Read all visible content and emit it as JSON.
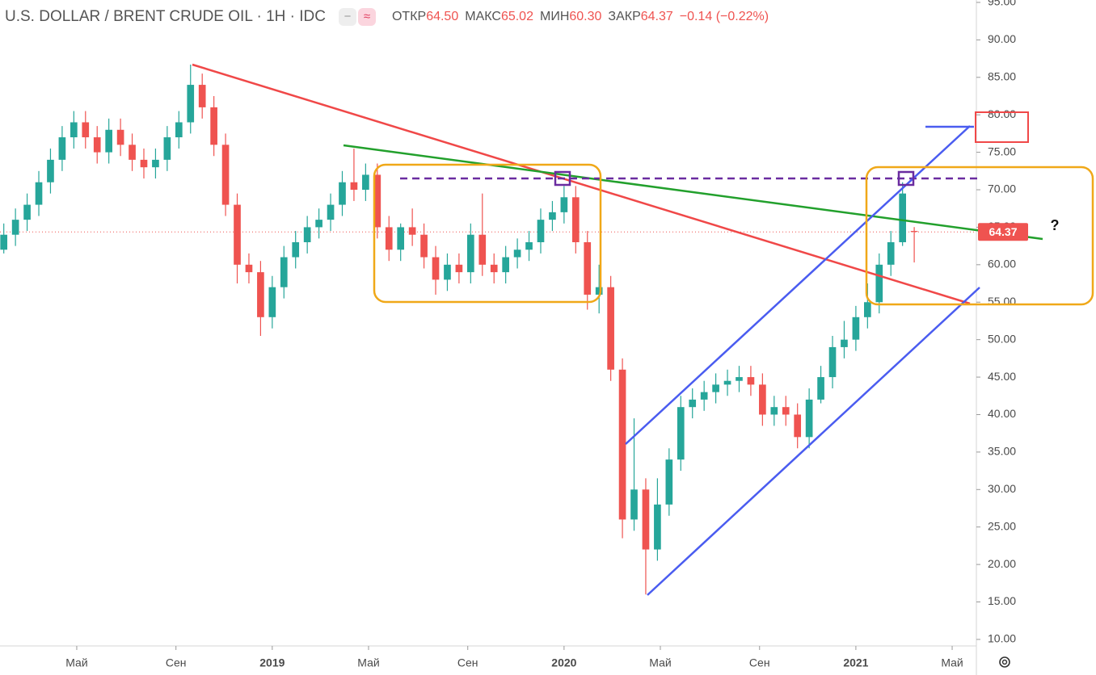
{
  "chart_data": {
    "type": "candlestick",
    "title": "U.S. DOLLAR / BRENT CRUDE OIL · 1H · IDC",
    "ohlc_legend": {
      "open_label": "ОТКР",
      "open": "64.50",
      "high_label": "МАКС",
      "high": "65.02",
      "low_label": "МИН",
      "low": "60.30",
      "close_label": "ЗАКР",
      "close": "64.37",
      "change": "−0.14 (−0.22%)"
    },
    "x": [
      2018.08,
      2018.12,
      2018.16,
      2018.2,
      2018.24,
      2018.28,
      2018.32,
      2018.36,
      2018.4,
      2018.44,
      2018.48,
      2018.52,
      2018.56,
      2018.6,
      2018.64,
      2018.68,
      2018.72,
      2018.76,
      2018.8,
      2018.84,
      2018.88,
      2018.92,
      2018.96,
      2019.0,
      2019.04,
      2019.08,
      2019.12,
      2019.16,
      2019.2,
      2019.24,
      2019.28,
      2019.32,
      2019.36,
      2019.4,
      2019.44,
      2019.48,
      2019.52,
      2019.56,
      2019.6,
      2019.64,
      2019.68,
      2019.72,
      2019.76,
      2019.8,
      2019.84,
      2019.88,
      2019.92,
      2019.96,
      2020.0,
      2020.04,
      2020.08,
      2020.12,
      2020.16,
      2020.2,
      2020.24,
      2020.28,
      2020.32,
      2020.36,
      2020.4,
      2020.44,
      2020.48,
      2020.52,
      2020.56,
      2020.6,
      2020.64,
      2020.68,
      2020.72,
      2020.76,
      2020.8,
      2020.84,
      2020.88,
      2020.92,
      2020.96,
      2021.0,
      2021.04,
      2021.08,
      2021.12,
      2021.16,
      2021.2
    ],
    "open": [
      62,
      64,
      66,
      68,
      71,
      74,
      77,
      79,
      77,
      75,
      78,
      76,
      74,
      73,
      74,
      77,
      79,
      84,
      81,
      76,
      68,
      60,
      59,
      53,
      57,
      61,
      63,
      65,
      66,
      68,
      71,
      70,
      72,
      65,
      62,
      65,
      64,
      61,
      58,
      60,
      59,
      64,
      60,
      59,
      61,
      62,
      63,
      66,
      67,
      69,
      63,
      56,
      57,
      46,
      26,
      30,
      22,
      28,
      34,
      41,
      42,
      43,
      44,
      44.5,
      45,
      44,
      40,
      41,
      40,
      37,
      42,
      45,
      49,
      50,
      53,
      55,
      60,
      63,
      64.5
    ],
    "high": [
      65.5,
      67.5,
      69.5,
      72.5,
      75.5,
      78.5,
      80.5,
      80.5,
      78.5,
      79.5,
      79.5,
      77.5,
      75.5,
      75.5,
      78.5,
      80.5,
      86.7,
      85.5,
      82.5,
      77.5,
      69.5,
      61.5,
      60.5,
      58.5,
      62.5,
      64.5,
      66.5,
      67.5,
      69.5,
      72.5,
      75.5,
      73.5,
      73.5,
      66.5,
      65.5,
      67.5,
      65.5,
      62.5,
      61.5,
      61.5,
      65.5,
      69.5,
      61.5,
      62.5,
      63.5,
      64.5,
      67.5,
      68.5,
      70.5,
      70.5,
      64.5,
      60,
      58.5,
      47.5,
      39.5,
      31.5,
      31.5,
      35.5,
      42.5,
      43.5,
      44.5,
      45.5,
      46,
      46.5,
      46.5,
      45.5,
      42.5,
      42.5,
      41.5,
      43.5,
      46.5,
      50.5,
      52.5,
      54.5,
      57.5,
      61.5,
      64.5,
      71,
      65.02
    ],
    "low": [
      61.5,
      62.5,
      64.5,
      66.5,
      69.5,
      72.5,
      75.5,
      75.5,
      73.5,
      73.5,
      74.5,
      72.5,
      71.5,
      71.5,
      72.5,
      75.5,
      77.5,
      79.5,
      74.5,
      66.5,
      57.5,
      57.5,
      50.5,
      51.5,
      55.5,
      59.5,
      61.5,
      63.5,
      64.5,
      66.5,
      68.5,
      68.5,
      63.5,
      60.5,
      60.5,
      62.5,
      59.5,
      56,
      56.5,
      57.5,
      57.5,
      58.5,
      57.5,
      57.5,
      59.5,
      60.5,
      61.5,
      64.5,
      65.5,
      61.5,
      54,
      53.5,
      44.5,
      23.5,
      24.5,
      16,
      20.5,
      26.5,
      32.5,
      39.5,
      40.5,
      41.5,
      42.5,
      43,
      42.5,
      38.5,
      38.5,
      38.5,
      35.5,
      35.5,
      41.5,
      43.5,
      47.5,
      48.5,
      51.5,
      53.5,
      58.5,
      62.5,
      60.3
    ],
    "close": [
      64,
      66,
      68,
      71,
      74,
      77,
      79,
      77,
      75,
      78,
      76,
      74,
      73,
      74,
      77,
      79,
      84,
      81,
      76,
      68,
      60,
      59,
      53,
      57,
      61,
      63,
      65,
      66,
      68,
      71,
      70,
      72,
      65,
      62,
      65,
      64,
      61,
      58,
      60,
      59,
      64,
      60,
      59,
      61,
      62,
      63,
      66,
      67,
      69,
      63,
      56,
      57,
      46,
      26,
      30,
      22,
      28,
      34,
      41,
      42,
      43,
      44,
      44.5,
      45,
      44,
      40,
      41,
      40,
      37,
      42,
      45,
      49,
      50,
      53,
      55,
      60,
      63,
      69.5,
      64.37
    ],
    "up_color": "#26a69a",
    "down_color": "#ef5350",
    "xlim": [
      2018.067,
      2021.413
    ],
    "xticks": [
      {
        "value": 2018.33,
        "label": "Май"
      },
      {
        "value": 2018.67,
        "label": "Сен"
      },
      2019,
      {
        "value": 2019.33,
        "label": "Май"
      },
      {
        "value": 2019.67,
        "label": "Сен"
      },
      2020,
      {
        "value": 2020.33,
        "label": "Май"
      },
      {
        "value": 2020.67,
        "label": "Сен"
      },
      2021,
      {
        "value": 2021.33,
        "label": "Май"
      }
    ],
    "ylim": [
      9.13,
      95.32
    ],
    "yticks": [
      {
        "value": 95,
        "label": "95.00"
      },
      {
        "value": 90,
        "label": "90.00"
      },
      {
        "value": 85,
        "label": "85.00"
      },
      {
        "value": 80,
        "label": "80.00"
      },
      {
        "value": 75,
        "label": "75.00"
      },
      {
        "value": 70,
        "label": "70.00"
      },
      {
        "value": 65,
        "label": "65.00"
      },
      {
        "value": 60,
        "label": "60.00"
      },
      {
        "value": 55,
        "label": "55.00"
      },
      {
        "value": 50,
        "label": "50.00"
      },
      {
        "value": 45,
        "label": "45.00"
      },
      {
        "value": 40,
        "label": "40.00"
      },
      {
        "value": 35,
        "label": "35.00"
      },
      {
        "value": 30,
        "label": "30.00"
      },
      {
        "value": 25,
        "label": "25.00"
      },
      {
        "value": 20,
        "label": "20.00"
      },
      {
        "value": 15,
        "label": "15.00"
      },
      {
        "value": 10,
        "label": "10.00"
      }
    ],
    "last_price": {
      "value": 64.37,
      "label": "64.37"
    },
    "annotation": "?"
  }
}
